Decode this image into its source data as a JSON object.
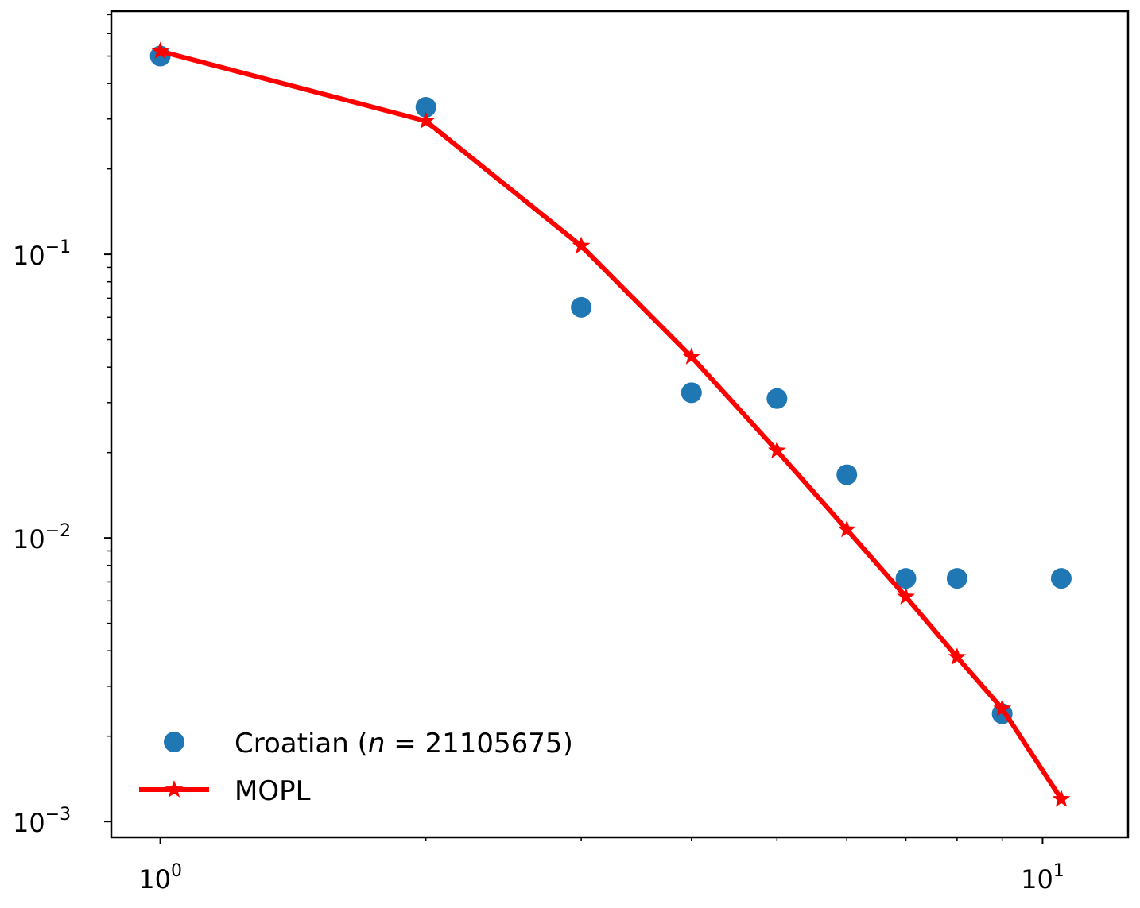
{
  "chart_data": {
    "type": "scatter",
    "x_scale": "log",
    "y_scale": "log",
    "xlim": [
      0.88,
      12.5
    ],
    "ylim": [
      0.00088,
      0.72
    ],
    "x_major_ticks": [
      {
        "value": 1,
        "base": "10",
        "exponent": "0"
      },
      {
        "value": 10,
        "base": "10",
        "exponent": "1"
      }
    ],
    "x_minor_ticks": [
      2,
      3,
      4,
      5,
      6,
      7,
      8,
      9
    ],
    "y_major_ticks": [
      {
        "value": 0.1,
        "base": "10",
        "exponent": "−1"
      },
      {
        "value": 0.01,
        "base": "10",
        "exponent": "−2"
      },
      {
        "value": 0.001,
        "base": "10",
        "exponent": "−3"
      }
    ],
    "y_minor_ticks": [
      0.002,
      0.003,
      0.004,
      0.005,
      0.006,
      0.007,
      0.008,
      0.009,
      0.02,
      0.03,
      0.04,
      0.05,
      0.06,
      0.07,
      0.08,
      0.09,
      0.2,
      0.3,
      0.4,
      0.5,
      0.6,
      0.7
    ],
    "grid": false,
    "legend_position": "bottom-left",
    "series": [
      {
        "name": "Croatian (n = 21105675)",
        "label_prefix": "Croatian (",
        "label_var": "n",
        "label_eq": " = 21105675)",
        "kind": "scatter",
        "color": "#1f77b4",
        "x": [
          1,
          2,
          3,
          4,
          5,
          6,
          7,
          8,
          9,
          10.5
        ],
        "y": [
          0.5,
          0.33,
          0.065,
          0.0325,
          0.031,
          0.0167,
          0.0072,
          0.0072,
          0.0024,
          0.0072
        ]
      },
      {
        "name": "MOPL",
        "kind": "line",
        "marker": "star",
        "color": "#ff0000",
        "x": [
          1,
          2,
          3,
          4,
          5,
          6,
          7,
          8,
          9,
          10.5
        ],
        "y": [
          0.52,
          0.295,
          0.107,
          0.0435,
          0.0203,
          0.0107,
          0.0062,
          0.0038,
          0.0025,
          0.0012
        ]
      }
    ]
  }
}
